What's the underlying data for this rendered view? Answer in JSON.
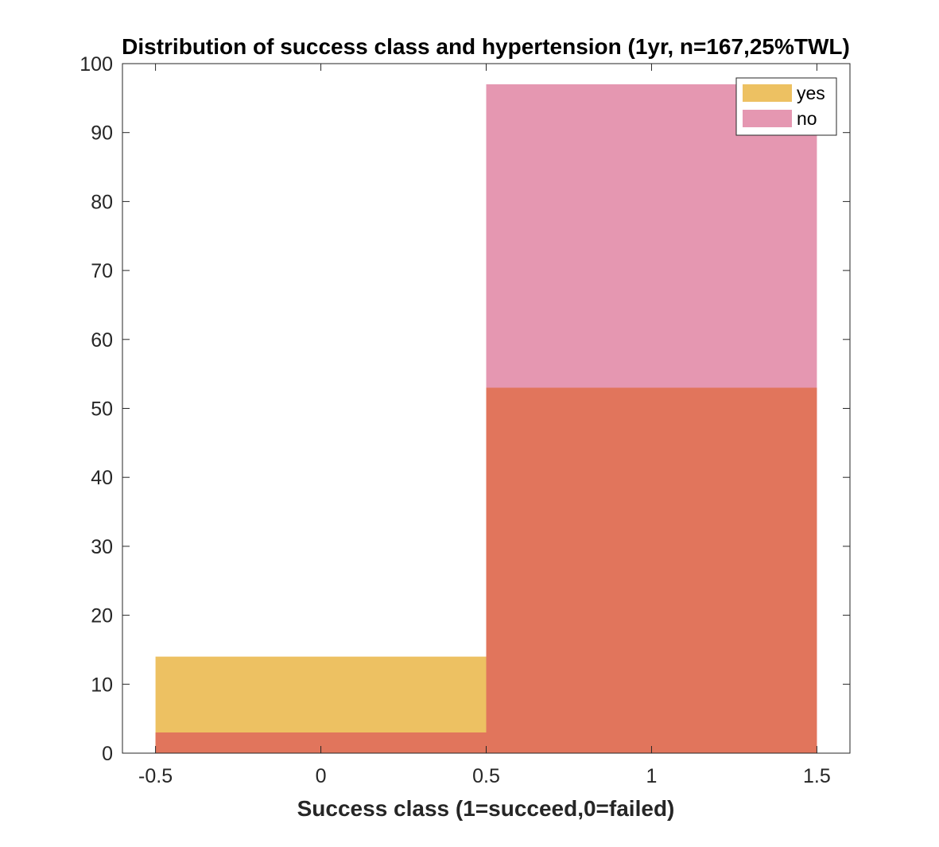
{
  "chart_data": {
    "type": "bar",
    "title": "Distribution of success class and hypertension (1yr, n=167,25%TWL)",
    "xlabel": "Success class (1=succeed,0=failed)",
    "ylabel": "",
    "xlim": [
      -0.6,
      1.6
    ],
    "ylim": [
      0,
      100
    ],
    "xticks": [
      -0.5,
      0,
      0.5,
      1,
      1.5
    ],
    "xtick_labels": [
      "-0.5",
      "0",
      "0.5",
      "1",
      "1.5"
    ],
    "yticks": [
      0,
      10,
      20,
      30,
      40,
      50,
      60,
      70,
      80,
      90,
      100
    ],
    "ytick_labels": [
      "0",
      "10",
      "20",
      "30",
      "40",
      "50",
      "60",
      "70",
      "80",
      "90",
      "100"
    ],
    "bins": [
      [
        -0.5,
        0.5
      ],
      [
        0.5,
        1.5
      ]
    ],
    "series": [
      {
        "name": "yes",
        "values": [
          14,
          53
        ],
        "color": "#EDC162"
      },
      {
        "name": "no",
        "values": [
          3,
          97
        ],
        "color": "#E597B1"
      }
    ],
    "overlap_color": "#E1755C",
    "grid": false,
    "legend_position": "top-right"
  }
}
